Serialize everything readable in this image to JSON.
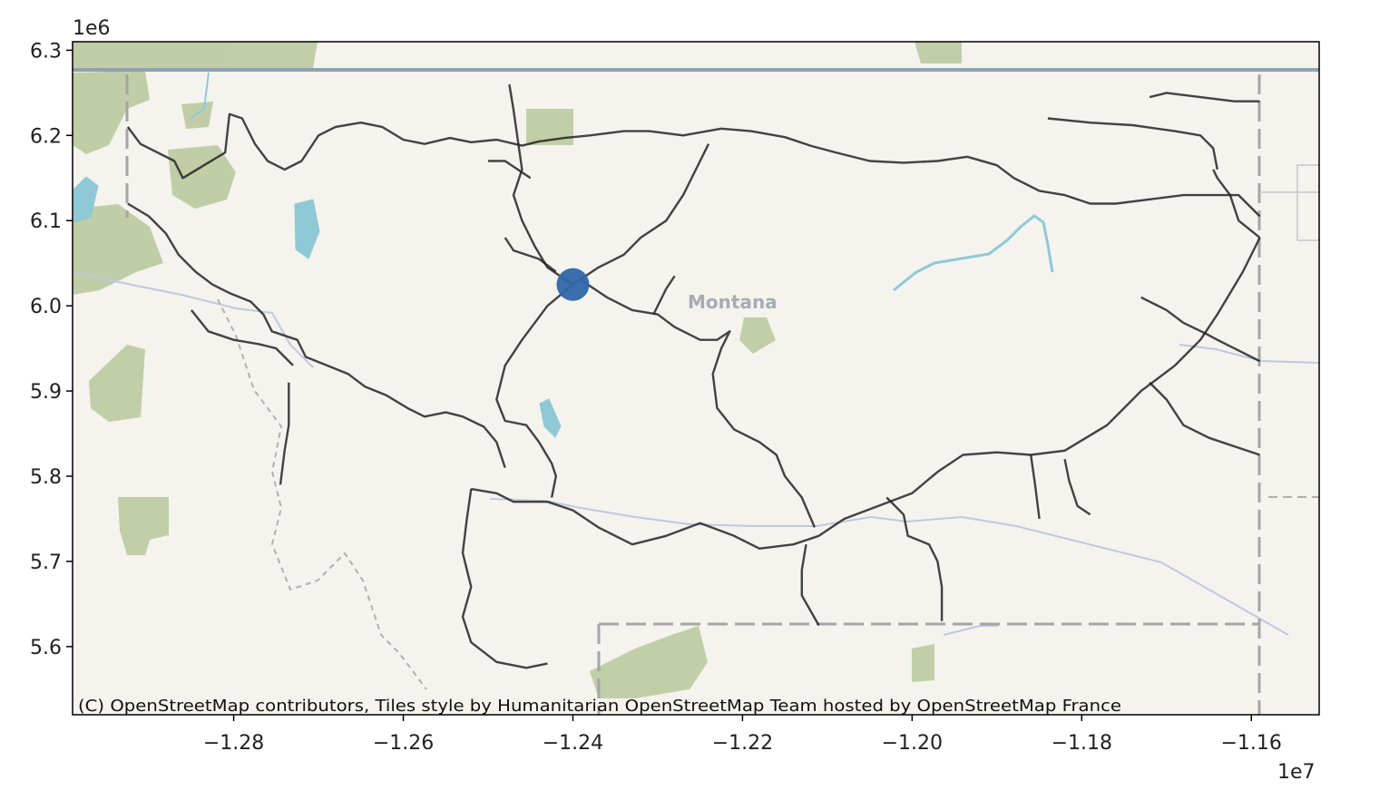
{
  "map": {
    "place_label": "Montana",
    "attribution": "(C) OpenStreetMap contributors, Tiles style by Humanitarian OpenStreetMap Team hosted by OpenStreetMap France",
    "marker_color": "#2f66a8",
    "route_color": "#222222",
    "basemap_colors": {
      "land": "#f4f3ee",
      "forest": "#b8c79a",
      "water": "#8fc9d6",
      "border": "#9b9b9b",
      "river": "#c4c6e0"
    }
  },
  "chart_data": {
    "type": "map",
    "x_axis": {
      "ticks": [
        -12800000,
        -12600000,
        -12400000,
        -12200000,
        -12000000,
        -11800000,
        -11600000
      ],
      "tick_labels": [
        "−1.28",
        "−1.26",
        "−1.24",
        "−1.22",
        "−1.20",
        "−1.18",
        "−1.16"
      ],
      "offset_label": "1e7",
      "range": [
        -12990000,
        -11520000
      ]
    },
    "y_axis": {
      "ticks": [
        5600000,
        5700000,
        5800000,
        5900000,
        6000000,
        6100000,
        6200000,
        6300000
      ],
      "tick_labels": [
        "5.6",
        "5.7",
        "5.8",
        "5.9",
        "6.0",
        "6.1",
        "6.2",
        "6.3"
      ],
      "offset_label": "1e6",
      "range": [
        5520000,
        6310000
      ]
    },
    "marker": {
      "x": -12400000,
      "y": 6025000
    },
    "routes": [
      [
        [
          -12925000,
          6210000
        ],
        [
          -12910000,
          6190000
        ],
        [
          -12870000,
          6170000
        ],
        [
          -12860000,
          6150000
        ],
        [
          -12835000,
          6165000
        ],
        [
          -12810000,
          6180000
        ],
        [
          -12805000,
          6225000
        ],
        [
          -12790000,
          6220000
        ],
        [
          -12775000,
          6190000
        ],
        [
          -12760000,
          6170000
        ],
        [
          -12740000,
          6160000
        ],
        [
          -12720000,
          6170000
        ],
        [
          -12700000,
          6200000
        ],
        [
          -12680000,
          6210000
        ],
        [
          -12650000,
          6215000
        ],
        [
          -12625000,
          6210000
        ],
        [
          -12600000,
          6195000
        ],
        [
          -12575000,
          6190000
        ],
        [
          -12545000,
          6197000
        ],
        [
          -12520000,
          6192000
        ],
        [
          -12490000,
          6195000
        ],
        [
          -12460000,
          6188000
        ],
        [
          -12440000,
          6193000
        ],
        [
          -12410000,
          6197000
        ],
        [
          -12380000,
          6200000
        ],
        [
          -12340000,
          6205000
        ],
        [
          -12310000,
          6205000
        ],
        [
          -12270000,
          6200000
        ],
        [
          -12225000,
          6208000
        ],
        [
          -12190000,
          6205000
        ],
        [
          -12150000,
          6198000
        ],
        [
          -12120000,
          6188000
        ],
        [
          -12090000,
          6180000
        ],
        [
          -12050000,
          6170000
        ],
        [
          -12010000,
          6168000
        ],
        [
          -11970000,
          6170000
        ],
        [
          -11935000,
          6175000
        ],
        [
          -11900000,
          6165000
        ],
        [
          -11880000,
          6150000
        ],
        [
          -11850000,
          6135000
        ],
        [
          -11820000,
          6130000
        ],
        [
          -11790000,
          6120000
        ],
        [
          -11760000,
          6120000
        ],
        [
          -11720000,
          6125000
        ],
        [
          -11680000,
          6130000
        ],
        [
          -11640000,
          6130000
        ],
        [
          -11615000,
          6130000
        ],
        [
          -11590000,
          6105000
        ]
      ],
      [
        [
          -11590000,
          6080000
        ],
        [
          -11610000,
          6040000
        ],
        [
          -11640000,
          5990000
        ],
        [
          -11660000,
          5960000
        ],
        [
          -11690000,
          5930000
        ],
        [
          -11730000,
          5900000
        ],
        [
          -11770000,
          5860000
        ],
        [
          -11820000,
          5830000
        ],
        [
          -11860000,
          5825000
        ],
        [
          -11900000,
          5828000
        ],
        [
          -11940000,
          5825000
        ],
        [
          -11970000,
          5805000
        ],
        [
          -12000000,
          5780000
        ],
        [
          -12040000,
          5765000
        ],
        [
          -12080000,
          5750000
        ],
        [
          -12110000,
          5730000
        ],
        [
          -12140000,
          5720000
        ],
        [
          -12180000,
          5715000
        ],
        [
          -12210000,
          5730000
        ],
        [
          -12250000,
          5745000
        ],
        [
          -12290000,
          5730000
        ],
        [
          -12330000,
          5720000
        ],
        [
          -12370000,
          5740000
        ],
        [
          -12400000,
          5760000
        ],
        [
          -12430000,
          5770000
        ],
        [
          -12470000,
          5770000
        ],
        [
          -12490000,
          5780000
        ],
        [
          -12520000,
          5785000
        ]
      ],
      [
        [
          -12925000,
          6120000
        ],
        [
          -12900000,
          6105000
        ],
        [
          -12880000,
          6085000
        ],
        [
          -12865000,
          6060000
        ],
        [
          -12845000,
          6040000
        ],
        [
          -12825000,
          6025000
        ],
        [
          -12805000,
          6015000
        ],
        [
          -12780000,
          6005000
        ],
        [
          -12765000,
          5990000
        ],
        [
          -12755000,
          5970000
        ],
        [
          -12725000,
          5960000
        ],
        [
          -12715000,
          5940000
        ],
        [
          -12690000,
          5930000
        ],
        [
          -12665000,
          5920000
        ],
        [
          -12645000,
          5905000
        ],
        [
          -12620000,
          5895000
        ],
        [
          -12595000,
          5880000
        ],
        [
          -12575000,
          5870000
        ],
        [
          -12550000,
          5875000
        ],
        [
          -12530000,
          5870000
        ],
        [
          -12505000,
          5858000
        ],
        [
          -12490000,
          5840000
        ],
        [
          -12480000,
          5810000
        ]
      ],
      [
        [
          -12850000,
          5995000
        ],
        [
          -12830000,
          5970000
        ],
        [
          -12800000,
          5960000
        ],
        [
          -12770000,
          5955000
        ],
        [
          -12750000,
          5950000
        ],
        [
          -12730000,
          5930000
        ]
      ],
      [
        [
          -12735000,
          5910000
        ],
        [
          -12735000,
          5860000
        ],
        [
          -12740000,
          5830000
        ],
        [
          -12745000,
          5790000
        ]
      ],
      [
        [
          -12520000,
          5785000
        ],
        [
          -12525000,
          5750000
        ],
        [
          -12530000,
          5710000
        ],
        [
          -12520000,
          5670000
        ],
        [
          -12530000,
          5635000
        ],
        [
          -12520000,
          5605000
        ],
        [
          -12490000,
          5582000
        ],
        [
          -12455000,
          5575000
        ],
        [
          -12430000,
          5580000
        ]
      ],
      [
        [
          -12400000,
          6025000
        ],
        [
          -12430000,
          6000000
        ],
        [
          -12460000,
          5960000
        ],
        [
          -12480000,
          5930000
        ],
        [
          -12490000,
          5890000
        ],
        [
          -12480000,
          5865000
        ],
        [
          -12455000,
          5860000
        ],
        [
          -12440000,
          5840000
        ],
        [
          -12425000,
          5815000
        ],
        [
          -12420000,
          5800000
        ],
        [
          -12425000,
          5775000
        ]
      ],
      [
        [
          -12400000,
          6025000
        ],
        [
          -12430000,
          6045000
        ],
        [
          -12445000,
          6070000
        ],
        [
          -12460000,
          6100000
        ],
        [
          -12470000,
          6130000
        ],
        [
          -12460000,
          6160000
        ],
        [
          -12465000,
          6195000
        ],
        [
          -12470000,
          6230000
        ],
        [
          -12475000,
          6260000
        ]
      ],
      [
        [
          -12400000,
          6025000
        ],
        [
          -12370000,
          6045000
        ],
        [
          -12340000,
          6060000
        ],
        [
          -12320000,
          6080000
        ],
        [
          -12290000,
          6100000
        ],
        [
          -12270000,
          6130000
        ],
        [
          -12255000,
          6160000
        ],
        [
          -12240000,
          6190000
        ]
      ],
      [
        [
          -12390000,
          6030000
        ],
        [
          -12360000,
          6010000
        ],
        [
          -12330000,
          5995000
        ],
        [
          -12300000,
          5990000
        ],
        [
          -12280000,
          5975000
        ],
        [
          -12250000,
          5960000
        ],
        [
          -12230000,
          5960000
        ],
        [
          -12215000,
          5970000
        ],
        [
          -12225000,
          5950000
        ],
        [
          -12235000,
          5920000
        ],
        [
          -12230000,
          5880000
        ],
        [
          -12210000,
          5855000
        ],
        [
          -12180000,
          5840000
        ],
        [
          -12160000,
          5825000
        ],
        [
          -12150000,
          5800000
        ],
        [
          -12130000,
          5775000
        ],
        [
          -12115000,
          5740000
        ]
      ],
      [
        [
          -12125000,
          5720000
        ],
        [
          -12130000,
          5690000
        ],
        [
          -12130000,
          5660000
        ],
        [
          -12110000,
          5625000
        ]
      ],
      [
        [
          -12030000,
          5775000
        ],
        [
          -12010000,
          5755000
        ],
        [
          -12005000,
          5730000
        ],
        [
          -11980000,
          5720000
        ],
        [
          -11970000,
          5700000
        ],
        [
          -11965000,
          5670000
        ],
        [
          -11965000,
          5630000
        ]
      ],
      [
        [
          -11860000,
          5825000
        ],
        [
          -11855000,
          5790000
        ],
        [
          -11850000,
          5750000
        ]
      ],
      [
        [
          -11820000,
          5820000
        ],
        [
          -11815000,
          5795000
        ],
        [
          -11805000,
          5765000
        ],
        [
          -11790000,
          5755000
        ]
      ],
      [
        [
          -11730000,
          6010000
        ],
        [
          -11700000,
          5995000
        ],
        [
          -11680000,
          5980000
        ],
        [
          -11655000,
          5968000
        ],
        [
          -11640000,
          5960000
        ],
        [
          -11620000,
          5950000
        ],
        [
          -11590000,
          5935000
        ]
      ],
      [
        [
          -11720000,
          5910000
        ],
        [
          -11700000,
          5890000
        ],
        [
          -11680000,
          5860000
        ],
        [
          -11650000,
          5845000
        ],
        [
          -11620000,
          5835000
        ],
        [
          -11590000,
          5825000
        ]
      ],
      [
        [
          -11645000,
          6160000
        ],
        [
          -11640000,
          6150000
        ],
        [
          -11625000,
          6130000
        ],
        [
          -11615000,
          6100000
        ],
        [
          -11590000,
          6080000
        ]
      ],
      [
        [
          -11840000,
          6220000
        ],
        [
          -11790000,
          6215000
        ],
        [
          -11740000,
          6212000
        ],
        [
          -11690000,
          6205000
        ],
        [
          -11660000,
          6200000
        ],
        [
          -11645000,
          6185000
        ],
        [
          -11640000,
          6160000
        ]
      ],
      [
        [
          -11720000,
          6245000
        ],
        [
          -11700000,
          6250000
        ],
        [
          -11660000,
          6245000
        ],
        [
          -11620000,
          6240000
        ],
        [
          -11590000,
          6240000
        ]
      ],
      [
        [
          -12450000,
          6150000
        ],
        [
          -12480000,
          6170000
        ],
        [
          -12500000,
          6170000
        ]
      ],
      [
        [
          -12420000,
          6040000
        ],
        [
          -12440000,
          6055000
        ],
        [
          -12470000,
          6065000
        ],
        [
          -12480000,
          6080000
        ]
      ],
      [
        [
          -12305000,
          5990000
        ],
        [
          -12290000,
          6020000
        ],
        [
          -12280000,
          6035000
        ]
      ]
    ]
  }
}
